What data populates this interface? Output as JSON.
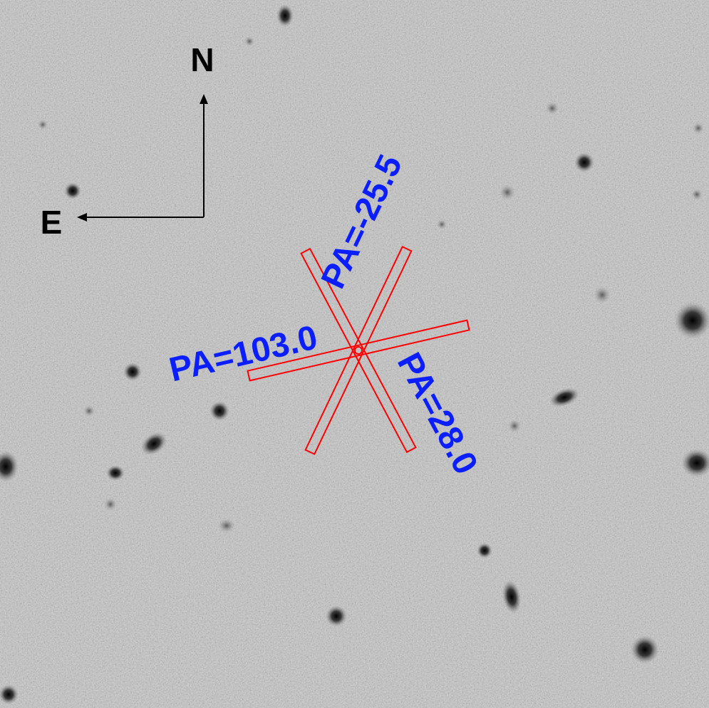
{
  "compass": {
    "north_label": "N",
    "east_label": "E"
  },
  "slits": [
    {
      "id": "pa-neg-25-5",
      "label": "PA=-25.5",
      "position_angle_deg": -25.5
    },
    {
      "id": "pa-28-0",
      "label": "PA=28.0",
      "position_angle_deg": 28.0
    },
    {
      "id": "pa-103-0",
      "label": "PA=103.0",
      "position_angle_deg": 103.0
    }
  ],
  "colors": {
    "slit_outline": "#ff0000",
    "pa_label": "#0a1eff",
    "compass": "#000000",
    "sky_background": "#c8c8c8"
  }
}
